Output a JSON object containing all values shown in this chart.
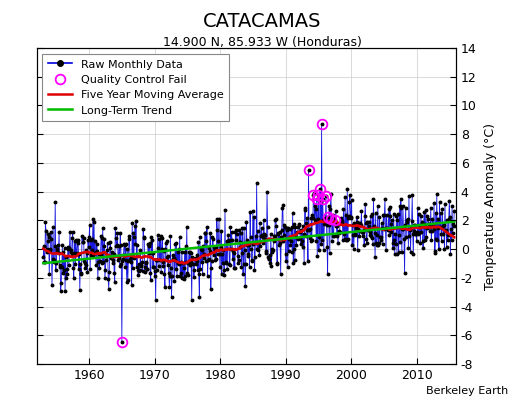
{
  "title": "CATACAMAS",
  "subtitle": "14.900 N, 85.933 W (Honduras)",
  "ylabel": "Temperature Anomaly (°C)",
  "credit": "Berkeley Earth",
  "xlim": [
    1952,
    2016
  ],
  "ylim": [
    -8,
    14
  ],
  "yticks": [
    -8,
    -6,
    -4,
    -2,
    0,
    2,
    4,
    6,
    8,
    10,
    12,
    14
  ],
  "xticks": [
    1960,
    1970,
    1980,
    1990,
    2000,
    2010
  ],
  "raw_color": "#0000dd",
  "ma_color": "#dd0000",
  "trend_color": "#00bb00",
  "qc_color": "#ff00ff",
  "bg_color": "#ffffff",
  "grid_color": "#cccccc",
  "seed": 12345,
  "title_fontsize": 14,
  "subtitle_fontsize": 9,
  "tick_fontsize": 9,
  "legend_fontsize": 8
}
